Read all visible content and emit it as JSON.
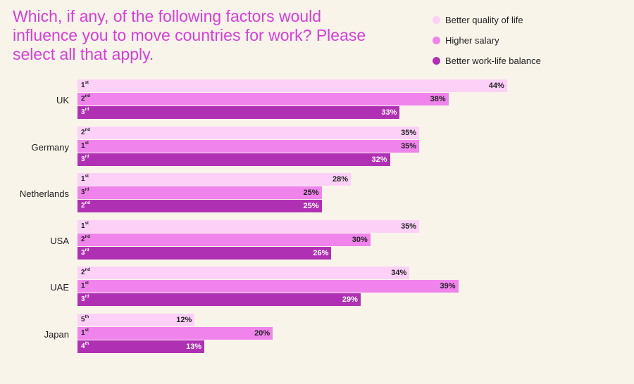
{
  "chart_data": {
    "type": "bar",
    "orientation": "horizontal",
    "title": "Which, if any, of the following factors would influence you to move countries for work? Please select all that apply.",
    "categories": [
      "UK",
      "Germany",
      "Netherlands",
      "USA",
      "UAE",
      "Japan"
    ],
    "xlim": [
      0,
      65
    ],
    "grid": false,
    "legend_position": "top-right",
    "value_suffix": "%",
    "series": [
      {
        "name": "Better quality of life",
        "color": "#fdd0f8",
        "text_color": "#222222",
        "values": [
          44,
          35,
          28,
          35,
          34,
          12
        ],
        "ranks": [
          "1st",
          "2nd",
          "1st",
          "1st",
          "2nd",
          "5th"
        ]
      },
      {
        "name": "Higher salary",
        "color": "#f083ec",
        "text_color": "#222222",
        "values": [
          38,
          35,
          25,
          30,
          39,
          20
        ],
        "ranks": [
          "2nd",
          "1st",
          "3rd",
          "2nd",
          "1st",
          "1st"
        ]
      },
      {
        "name": "Better work-life balance",
        "color": "#b030b4",
        "text_color": "#ffffff",
        "values": [
          33,
          32,
          25,
          26,
          29,
          13
        ],
        "ranks": [
          "3rd",
          "3rd",
          "2nd",
          "3rd",
          "3rd",
          "4th"
        ]
      }
    ]
  }
}
